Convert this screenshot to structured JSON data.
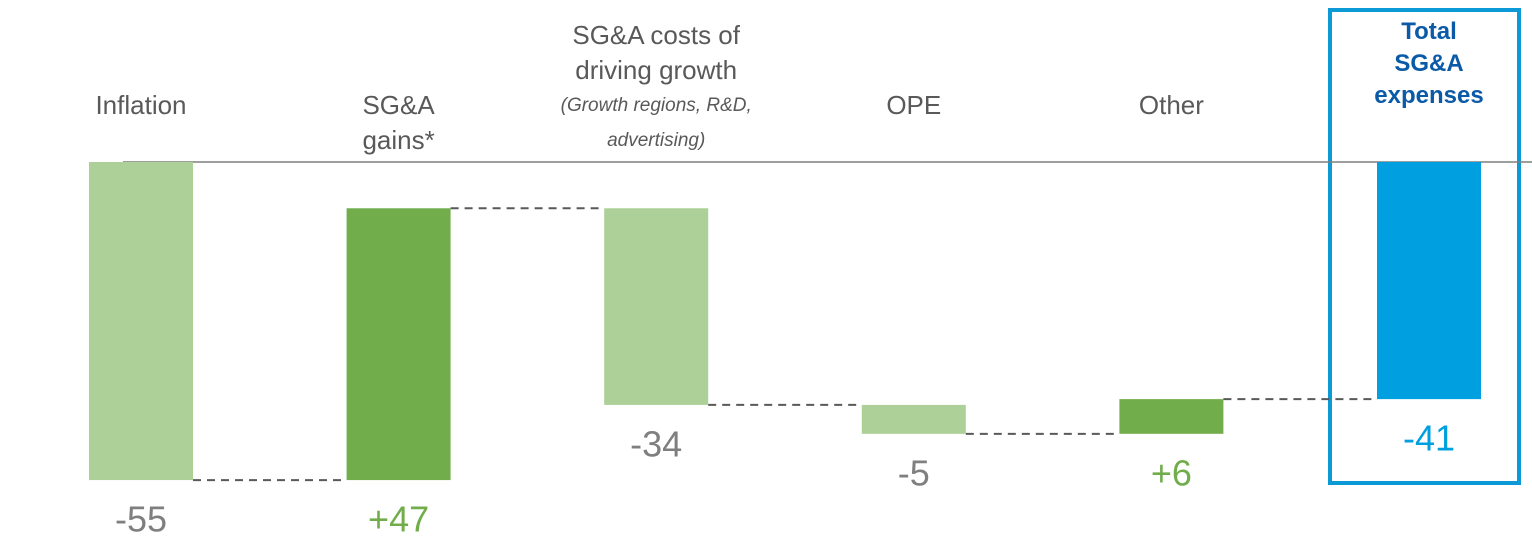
{
  "chart_data": {
    "type": "waterfall",
    "categories": [
      "Inflation",
      "SG&A gains*",
      "SG&A costs of driving growth",
      "OPE",
      "Other",
      "Total SG&A expenses"
    ],
    "category_notes": [
      null,
      null,
      "(Growth regions, R&D, advertising)",
      null,
      null,
      null
    ],
    "values": [
      -55,
      47,
      -34,
      -5,
      6,
      -41
    ],
    "value_labels": [
      "-55",
      "+47",
      "-34",
      "-5",
      "+6",
      "-41"
    ],
    "colors": [
      "#acd098",
      "#72ad4c",
      "#acd098",
      "#acd098",
      "#72ad4c",
      "#009fdf"
    ],
    "label_colors": [
      "#7f7f7f",
      "#72ad4c",
      "#7f7f7f",
      "#7f7f7f",
      "#72ad4c",
      "#009fdf"
    ],
    "last_is_total": true,
    "ylim": [
      -60,
      0
    ]
  }
}
